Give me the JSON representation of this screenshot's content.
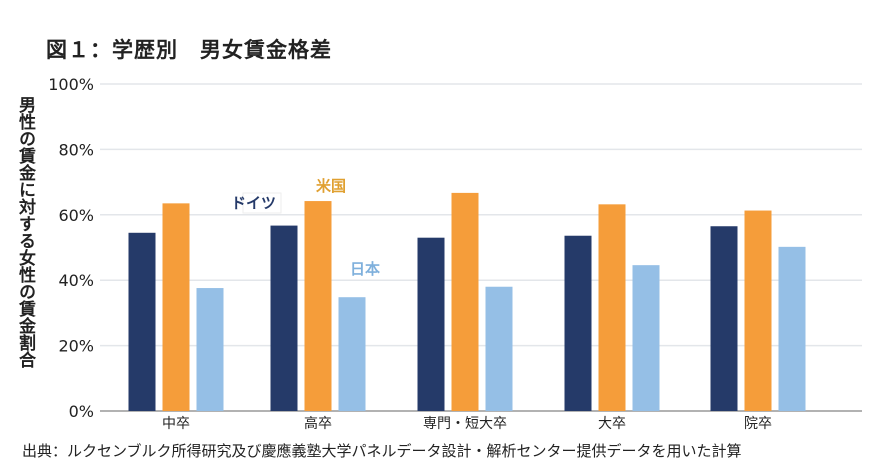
{
  "chart_data": {
    "type": "bar",
    "title": "図１：学歴別　男女賃金格差",
    "ylabel": "男性の賃金に対する女性の賃金割合",
    "xlabel": "",
    "categories": [
      "中卒",
      "高卒",
      "専門・短大卒",
      "大卒",
      "院卒"
    ],
    "series": [
      {
        "name": "ドイツ",
        "color": "#253a69",
        "values": [
          54.5,
          56.7,
          53,
          53.6,
          56.5
        ]
      },
      {
        "name": "米国",
        "color": "#f59d3a",
        "values": [
          63.5,
          64.2,
          66.7,
          63.2,
          61.3
        ]
      },
      {
        "name": "日本",
        "color": "#95bfe6",
        "values": [
          37.6,
          34.8,
          38,
          44.6,
          50.2
        ]
      }
    ],
    "ylim": [
      0,
      100
    ],
    "yticks": [
      "0%",
      "20%",
      "40%",
      "60%",
      "80%",
      "100%"
    ],
    "grid": true,
    "legend": "inline labels over 高卒 group",
    "source": "出典：ルクセンブルク所得研究及び慶應義塾大学パネルデータ設計・解析センター提供データを用いた計算"
  }
}
